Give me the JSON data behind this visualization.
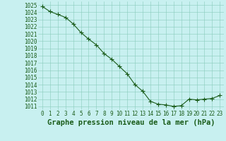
{
  "x": [
    0,
    1,
    2,
    3,
    4,
    5,
    6,
    7,
    8,
    9,
    10,
    11,
    12,
    13,
    14,
    15,
    16,
    17,
    18,
    19,
    20,
    21,
    22,
    23
  ],
  "y": [
    1024.8,
    1024.1,
    1023.7,
    1023.3,
    1022.4,
    1021.2,
    1020.3,
    1019.5,
    1018.3,
    1017.5,
    1016.5,
    1015.5,
    1014.0,
    1013.1,
    1011.7,
    1011.3,
    1011.2,
    1011.0,
    1011.1,
    1012.0,
    1011.9,
    1012.0,
    1012.1,
    1012.5
  ],
  "line_color": "#1a5c1a",
  "marker": "+",
  "marker_size": 4,
  "marker_color": "#1a5c1a",
  "bg_color": "#c8f0f0",
  "grid_color": "#88ccbb",
  "xlabel": "Graphe pression niveau de la mer (hPa)",
  "xlabel_fontsize": 7.5,
  "xlabel_color": "#1a5c1a",
  "ytick_labels": [
    1011,
    1012,
    1013,
    1014,
    1015,
    1016,
    1017,
    1018,
    1019,
    1020,
    1021,
    1022,
    1023,
    1024,
    1025
  ],
  "xtick_labels": [
    0,
    1,
    2,
    3,
    4,
    5,
    6,
    7,
    8,
    9,
    10,
    11,
    12,
    13,
    14,
    15,
    16,
    17,
    18,
    19,
    20,
    21,
    22,
    23
  ],
  "ylim": [
    1010.5,
    1025.5
  ],
  "xlim": [
    -0.5,
    23.5
  ],
  "tick_color": "#1a5c1a",
  "tick_fontsize": 5.5,
  "linewidth": 0.8
}
